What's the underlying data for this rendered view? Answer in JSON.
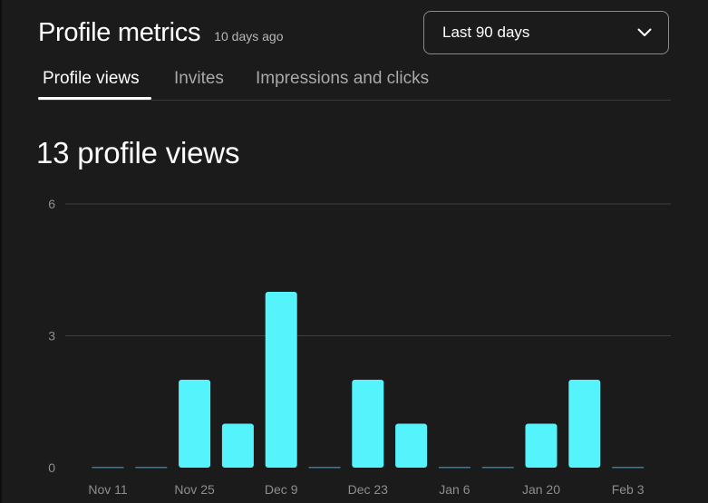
{
  "header": {
    "title": "Profile metrics",
    "updated": "10 days ago"
  },
  "dropdown": {
    "selected": "Last 90 days",
    "icon": "chevron-down-icon"
  },
  "tabs": [
    {
      "label": "Profile views",
      "active": true
    },
    {
      "label": "Invites",
      "active": false
    },
    {
      "label": "Impressions and clicks",
      "active": false
    }
  ],
  "metric": {
    "headline": "13 profile views"
  },
  "colors": {
    "background": "#1b1b1b",
    "bar": "#55f3fc",
    "grid": "#3f3f3f",
    "text_muted": "#8e8e8e"
  },
  "chart_data": {
    "type": "bar",
    "title": "",
    "xlabel": "",
    "ylabel": "",
    "ylim": [
      0,
      6
    ],
    "yticks": [
      0,
      3,
      6
    ],
    "grid": true,
    "x_tick_labels": [
      "Nov 11",
      "Nov 25",
      "Dec 9",
      "Dec 23",
      "Jan 6",
      "Jan 20",
      "Feb 3"
    ],
    "values": [
      0,
      0,
      2,
      1,
      4,
      0,
      2,
      1,
      0,
      0,
      1,
      2,
      0
    ]
  }
}
